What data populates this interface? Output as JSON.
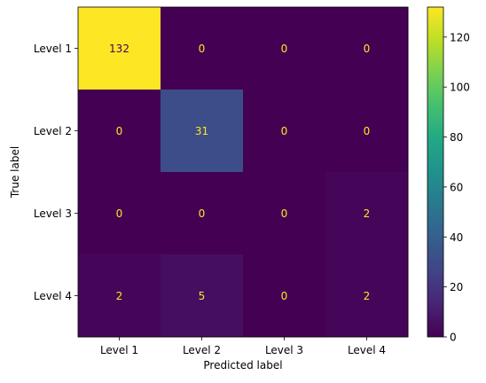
{
  "chart_data": {
    "type": "heatmap",
    "title": "",
    "xlabel": "Predicted label",
    "ylabel": "True label",
    "x_categories": [
      "Level 1",
      "Level 2",
      "Level 3",
      "Level 4"
    ],
    "y_categories": [
      "Level 1",
      "Level 2",
      "Level 3",
      "Level 4"
    ],
    "matrix": [
      [
        132,
        0,
        0,
        0
      ],
      [
        0,
        31,
        0,
        0
      ],
      [
        0,
        0,
        0,
        2
      ],
      [
        2,
        5,
        0,
        2
      ]
    ],
    "colormap": "viridis",
    "vmin": 0,
    "vmax": 132,
    "colorbar_ticks": [
      0,
      20,
      40,
      60,
      80,
      100,
      120
    ],
    "grid": false
  },
  "colors": {
    "text_on_dark": "#fde725",
    "text_on_light": "#440154"
  }
}
